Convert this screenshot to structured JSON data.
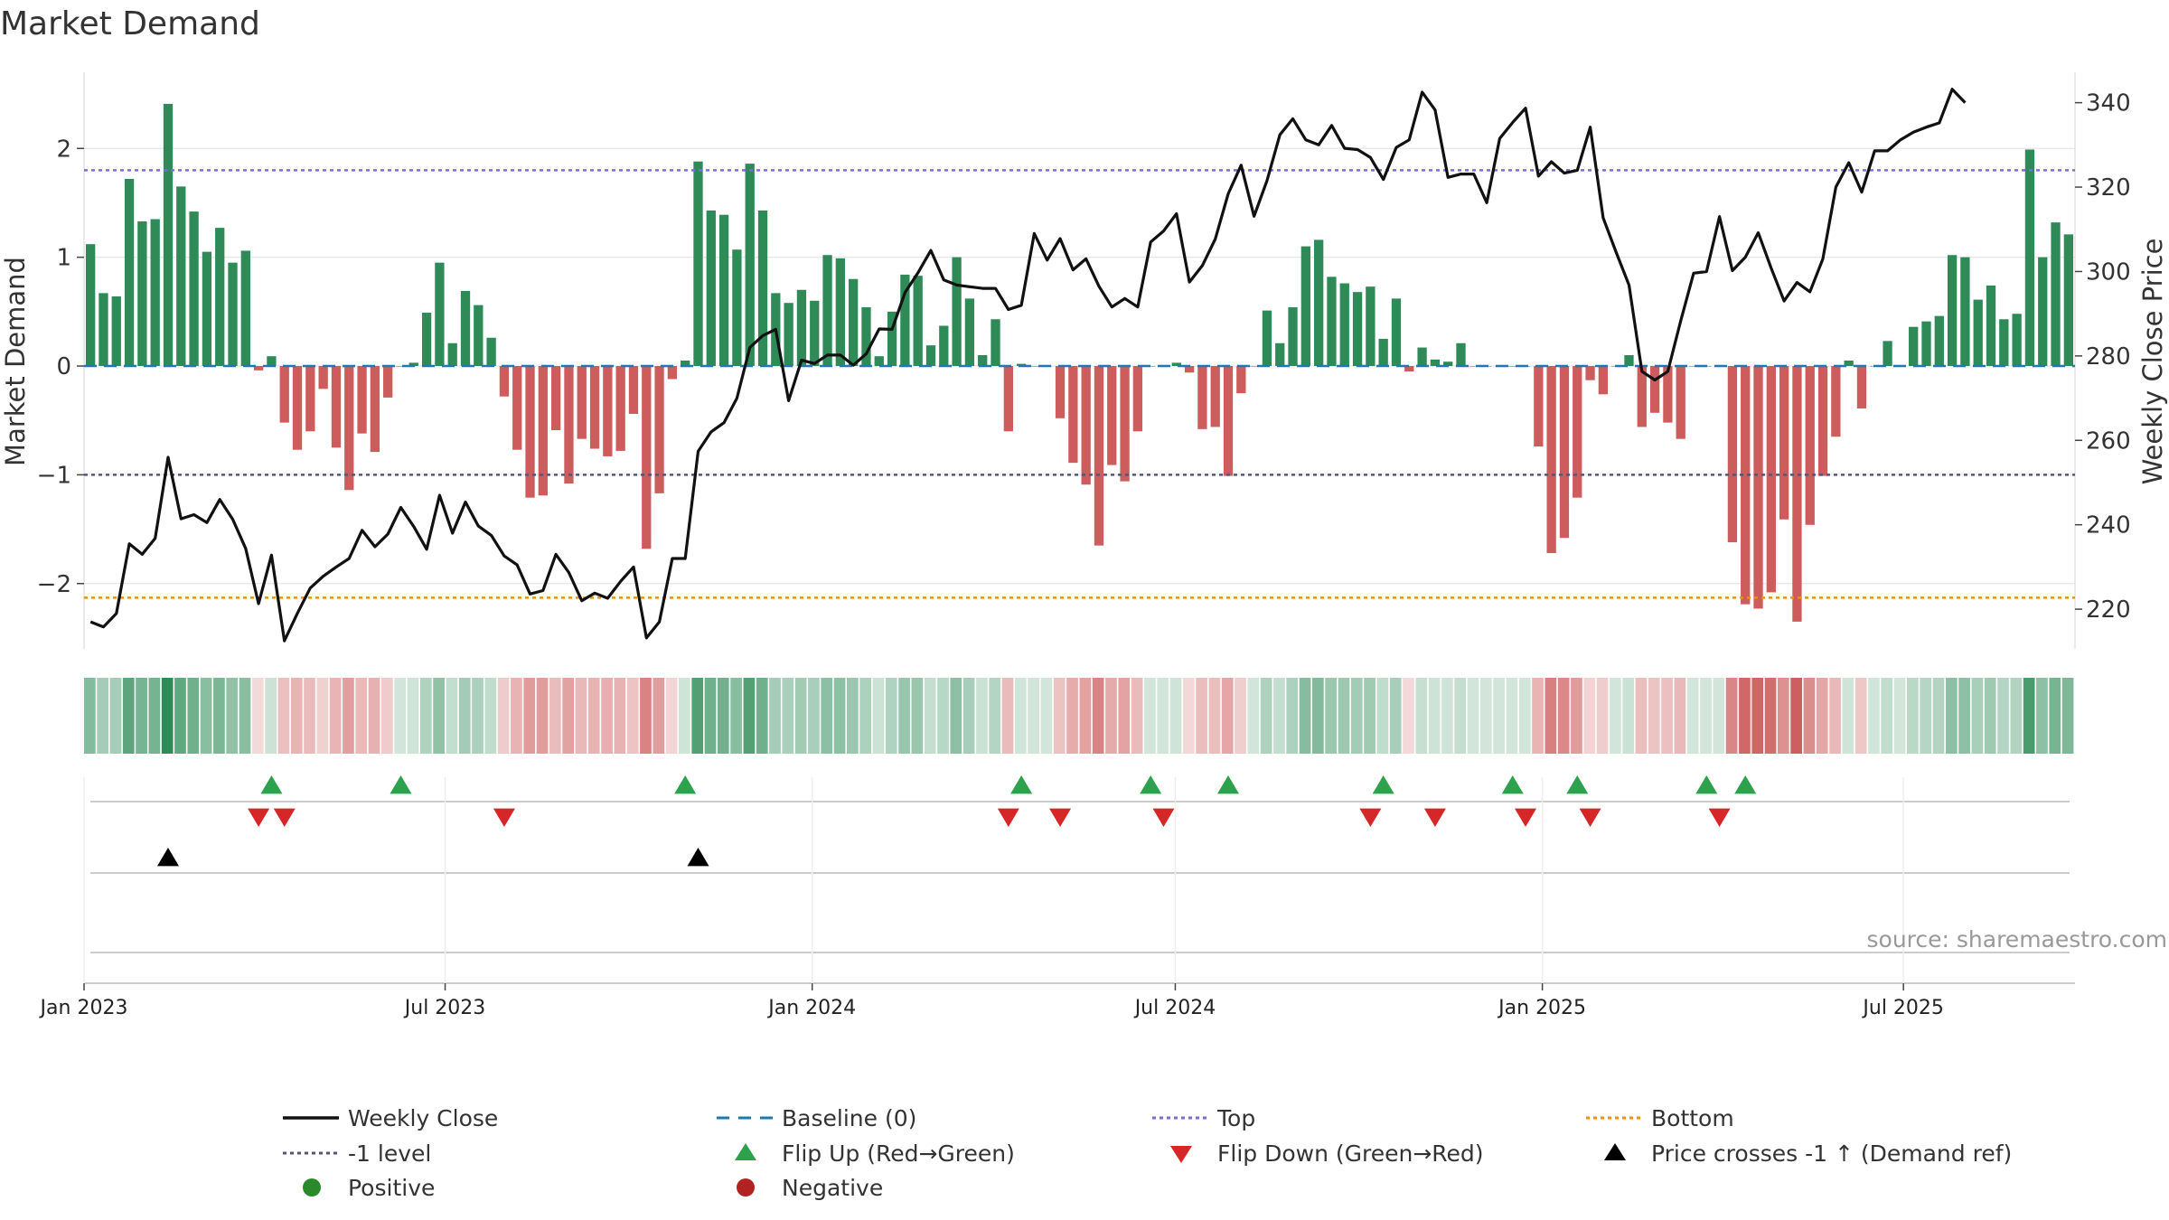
{
  "chart_data": {
    "type": "bar",
    "title": "Market Demand",
    "ylabel": "Market Demand",
    "y2label": "Weekly Close Price",
    "ylim": [
      -2.6,
      2.7
    ],
    "y2lim": [
      210.6,
      347.2
    ],
    "yticks": [
      2,
      1,
      0,
      -1,
      -2
    ],
    "yticklabels": [
      "2",
      "1",
      "0",
      "−1",
      "−2"
    ],
    "y2ticks": [
      340,
      320,
      300,
      280,
      260,
      240,
      220
    ],
    "y2ticklabels": [
      "340",
      "320",
      "300",
      "280",
      "260",
      "240",
      "220"
    ],
    "x_start": "2023-01-01",
    "x_end": "2025-09-25",
    "xticks": [
      {
        "date": "2023-01-01",
        "label": "Jan 2023"
      },
      {
        "date": "2023-07-01",
        "label": "Jul 2023"
      },
      {
        "date": "2024-01-01",
        "label": "Jan 2024"
      },
      {
        "date": "2024-07-01",
        "label": "Jul 2024"
      },
      {
        "date": "2025-01-01",
        "label": "Jan 2025"
      },
      {
        "date": "2025-07-01",
        "label": "Jul 2025"
      }
    ],
    "levels": {
      "baseline": 0,
      "top": 1.8,
      "minus_one": -1,
      "bottom": -2.13
    },
    "demand_values": [
      1.12,
      0.67,
      0.64,
      1.72,
      1.33,
      1.35,
      2.41,
      1.65,
      1.42,
      1.05,
      1.27,
      0.95,
      1.06,
      -0.04,
      0.09,
      -0.52,
      -0.77,
      -0.6,
      -0.21,
      -0.75,
      -1.14,
      -0.62,
      -0.79,
      -0.29,
      0.0,
      0.03,
      0.49,
      0.95,
      0.21,
      0.69,
      0.56,
      0.26,
      -0.28,
      -0.77,
      -1.21,
      -1.19,
      -0.59,
      -1.08,
      -0.67,
      -0.76,
      -0.83,
      -0.78,
      -0.44,
      -1.68,
      -1.17,
      -0.12,
      0.05,
      1.88,
      1.43,
      1.39,
      1.07,
      1.86,
      1.43,
      0.67,
      0.58,
      0.7,
      0.6,
      1.02,
      0.99,
      0.8,
      0.54,
      0.09,
      0.5,
      0.84,
      0.83,
      0.19,
      0.37,
      1.0,
      0.62,
      0.1,
      0.43,
      -0.6,
      0.02,
      0.0,
      0.0,
      -0.48,
      -0.89,
      -1.09,
      -1.65,
      -0.91,
      -1.06,
      -0.6,
      0.0,
      0.0,
      0.03,
      -0.06,
      -0.58,
      -0.56,
      -1.01,
      -0.25,
      0.0,
      0.51,
      0.21,
      0.54,
      1.1,
      1.16,
      0.82,
      0.76,
      0.68,
      0.73,
      0.25,
      0.62,
      -0.05,
      0.17,
      0.06,
      0.04,
      0.21,
      0.0,
      0.0,
      0.0,
      0.0,
      0.0,
      -0.74,
      -1.72,
      -1.58,
      -1.21,
      -0.13,
      -0.26,
      0.0,
      0.1,
      -0.56,
      -0.43,
      -0.52,
      -0.67,
      0.0,
      0.0,
      0.0,
      -1.62,
      -2.19,
      -2.23,
      -2.08,
      -1.41,
      -2.35,
      -1.46,
      -1.01,
      -0.65,
      0.05,
      -0.39,
      0.0,
      0.23,
      0.0,
      0.36,
      0.41,
      0.46,
      1.02,
      1.0,
      0.61,
      0.74,
      0.43,
      0.48,
      1.99,
      1.0,
      1.32,
      1.21
    ],
    "price_values": [
      217.0,
      215.8,
      219.0,
      235.5,
      233.0,
      236.8,
      256.0,
      241.4,
      242.4,
      240.5,
      246.0,
      241.3,
      234.4,
      221.3,
      232.8,
      212.5,
      219.0,
      225.0,
      227.8,
      230.0,
      232.0,
      238.7,
      234.8,
      237.8,
      244.1,
      239.6,
      234.2,
      247.0,
      238.0,
      245.4,
      239.7,
      237.5,
      232.6,
      230.5,
      223.6,
      224.4,
      233.0,
      228.7,
      222.0,
      223.8,
      222.6,
      226.6,
      230.0,
      213.2,
      217.0,
      232.0,
      232.0,
      257.4,
      262.0,
      264.2,
      270.0,
      282.0,
      284.8,
      286.3,
      269.4,
      279.0,
      278.2,
      280.2,
      280.2,
      277.8,
      280.5,
      286.4,
      286.3,
      295.0,
      299.7,
      305.0,
      298.0,
      296.8,
      296.4,
      296.0,
      296.0,
      291.0,
      292.0,
      309.0,
      302.7,
      307.8,
      300.4,
      303.0,
      296.5,
      291.6,
      293.6,
      291.6,
      307.0,
      309.6,
      313.7,
      297.5,
      301.4,
      307.7,
      318.4,
      325.2,
      313.1,
      321.5,
      332.4,
      336.2,
      331.2,
      330.0,
      334.6,
      329.2,
      328.9,
      327.0,
      321.8,
      329.4,
      331.2,
      342.5,
      338.3,
      322.3,
      323.1,
      323.1,
      316.3,
      331.5,
      335.3,
      338.7,
      322.6,
      326.0,
      323.3,
      324.0,
      334.2,
      312.7,
      304.6,
      296.8,
      276.3,
      274.3,
      276.3,
      288.3,
      299.6,
      300.0,
      313.0,
      300.2,
      303.4,
      309.2,
      300.8,
      293.0,
      297.4,
      295.2,
      303.0,
      320.0,
      325.8,
      318.8,
      328.6,
      328.6,
      331.2,
      333.0,
      334.2,
      335.2,
      343.2,
      340.0
    ],
    "strip_values": [
      1.12,
      0.67,
      0.64,
      1.72,
      1.33,
      1.35,
      2.41,
      1.65,
      1.42,
      1.05,
      1.27,
      0.95,
      1.06,
      -0.04,
      0.09,
      -0.52,
      -0.77,
      -0.6,
      -0.21,
      -0.75,
      -1.14,
      -0.62,
      -0.79,
      -0.29,
      0.0,
      0.03,
      0.49,
      0.95,
      0.21,
      0.69,
      0.56,
      0.26,
      -0.28,
      -0.77,
      -1.21,
      -1.19,
      -0.59,
      -1.08,
      -0.67,
      -0.76,
      -0.83,
      -0.78,
      -0.44,
      -1.68,
      -1.17,
      -0.12,
      0.05,
      1.88,
      1.43,
      1.39,
      1.07,
      1.86,
      1.43,
      0.67,
      0.58,
      0.7,
      0.6,
      1.02,
      0.99,
      0.8,
      0.54,
      0.09,
      0.5,
      0.84,
      0.83,
      0.19,
      0.37,
      1.0,
      0.62,
      0.1,
      0.43,
      -0.6,
      0.02,
      0.0,
      0.0,
      -0.48,
      -0.89,
      -1.09,
      -1.65,
      -0.91,
      -1.06,
      -0.6,
      0.0,
      0.0,
      0.03,
      -0.06,
      -0.58,
      -0.56,
      -1.01,
      -0.25,
      0.0,
      0.51,
      0.21,
      0.54,
      1.1,
      1.16,
      0.82,
      0.76,
      0.68,
      0.73,
      0.25,
      0.62,
      -0.05,
      0.17,
      0.06,
      0.04,
      0.21,
      0.0,
      0.0,
      0.0,
      0.0,
      0.0,
      -0.74,
      -1.72,
      -1.58,
      -1.21,
      -0.13,
      -0.26,
      0.0,
      0.1,
      -0.56,
      -0.43,
      -0.52,
      -0.67,
      0.0,
      0.0,
      0.0,
      -1.62,
      -2.19,
      -2.23,
      -2.08,
      -1.41,
      -2.35,
      -1.46,
      -1.01,
      -0.65,
      0.05,
      -0.39,
      0.0,
      0.23,
      0.0,
      0.36,
      0.41,
      0.46,
      1.02,
      1.0,
      0.61,
      0.74,
      0.43,
      0.48,
      1.99,
      1.0,
      1.32,
      1.21
    ],
    "flip_up_indices": [
      14,
      24,
      46,
      72,
      82,
      88,
      100,
      110,
      115,
      125,
      128
    ],
    "flip_down_indices": [
      13,
      15,
      32,
      71,
      75,
      83,
      99,
      104,
      111,
      116,
      126
    ],
    "price_cross_indices": [
      6,
      47
    ],
    "legend": [
      {
        "label": "Weekly Close",
        "kind": "line",
        "color": "#111111"
      },
      {
        "label": "Baseline (0)",
        "kind": "dash",
        "color": "#1f77b4"
      },
      {
        "label": "Top",
        "kind": "dot",
        "color": "#7b6fd0"
      },
      {
        "label": "Bottom",
        "kind": "dot",
        "color": "#e8911a"
      },
      {
        "label": "-1 level",
        "kind": "dot",
        "color": "#555577"
      },
      {
        "label": "Flip Up (Red→Green)",
        "kind": "tri-up",
        "color": "#2ca24c"
      },
      {
        "label": "Flip Down (Green→Red)",
        "kind": "tri-down",
        "color": "#d62728"
      },
      {
        "label": "Price crosses -1 ↑ (Demand ref)",
        "kind": "tri-up",
        "color": "#000000"
      },
      {
        "label": "Positive",
        "kind": "circle",
        "color": "#2a8a2a"
      },
      {
        "label": "Negative",
        "kind": "circle",
        "color": "#b22222"
      }
    ],
    "source": "source: sharemaestro.com",
    "colors": {
      "positive": "#2e8b57",
      "negative": "#cd5c5c",
      "price": "#111111",
      "baseline": "#1f77b4",
      "top": "#7b6fd0",
      "bottom": "#e8911a",
      "minus_one": "#555577",
      "flip_up": "#2ca24c",
      "flip_down": "#d62728",
      "cross": "#000000"
    }
  }
}
